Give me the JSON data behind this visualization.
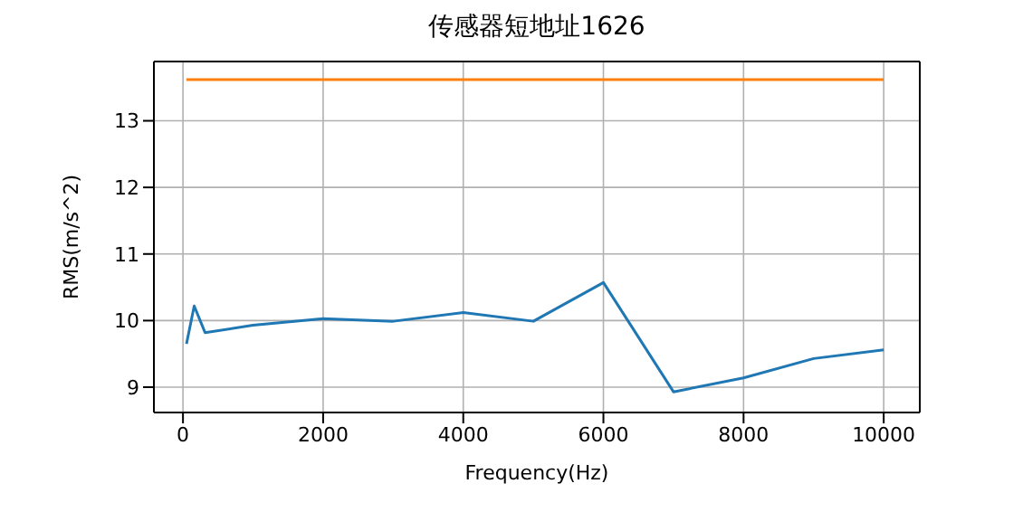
{
  "chart_data": {
    "type": "line",
    "title": "传感器短地址1626",
    "xlabel": "Frequency(Hz)",
    "ylabel": "RMS(m/s^2)",
    "xlim": [
      -415,
      10515
    ],
    "xticks": [
      0,
      2000,
      4000,
      6000,
      8000,
      10000
    ],
    "ylim": [
      8.62,
      13.89
    ],
    "yticks": [
      9,
      10,
      11,
      12,
      13
    ],
    "grid": true,
    "legend": false,
    "marker": "none",
    "line_style": "solid",
    "series": [
      {
        "color": "#1f77b4",
        "x": [
          50,
          160,
          315,
          1000,
          2000,
          3000,
          4000,
          5000,
          6000,
          7000,
          8000,
          9000,
          10000
        ],
        "values": [
          9.65,
          10.22,
          9.82,
          9.93,
          10.03,
          9.99,
          10.12,
          9.99,
          10.57,
          8.93,
          9.14,
          9.43,
          9.56
        ]
      },
      {
        "color": "#ff7f0e",
        "x": [
          50,
          10000
        ],
        "values": [
          13.62,
          13.62
        ]
      }
    ]
  }
}
